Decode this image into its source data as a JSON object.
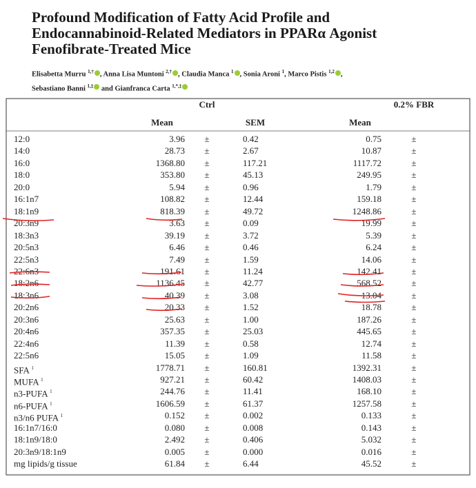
{
  "header": {
    "title_lines": [
      "Profound Modification of Fatty Acid Profile and",
      "Endocannabinoid-Related Mediators in PPARα Agonist",
      "Fenofibrate-Treated Mice"
    ],
    "author_lines": [
      [
        {
          "name": "Elisabetta Murru",
          "sup": "1,†",
          "orcid": true
        },
        {
          "name": "Anna Lisa Muntoni",
          "sup": "2,†",
          "orcid": true
        },
        {
          "name": "Claudia Manca",
          "sup": "1",
          "orcid": true
        },
        {
          "name": "Sonia Aroni",
          "sup": "1",
          "orcid": false
        },
        {
          "name": "Marco Pistis",
          "sup": "1,2",
          "orcid": true
        }
      ],
      [
        {
          "name": "Sebastiano Banni",
          "sup": "1,‡",
          "orcid": true
        },
        {
          "name": "Gianfranca Carta",
          "sup": "1,*,‡",
          "orcid": true
        }
      ]
    ],
    "separator": ",",
    "conjunction": "and"
  },
  "table": {
    "groups": [
      "Ctrl",
      "0.2% FBR"
    ],
    "columns": [
      "Mean",
      "SEM",
      "Mean"
    ],
    "rows": [
      {
        "label": "12:0",
        "cells": [
          "3.96",
          "±",
          "0.42",
          "0.75",
          "±"
        ]
      },
      {
        "label": "14:0",
        "cells": [
          "28.73",
          "±",
          "2.67",
          "10.87",
          "±"
        ]
      },
      {
        "label": "16:0",
        "cells": [
          "1368.80",
          "±",
          "117.21",
          "1117.72",
          "±"
        ]
      },
      {
        "label": "18:0",
        "cells": [
          "353.80",
          "±",
          "45.13",
          "249.95",
          "±"
        ]
      },
      {
        "label": "20:0",
        "cells": [
          "5.94",
          "±",
          "0.96",
          "1.79",
          "±"
        ]
      },
      {
        "label": "16:1n7",
        "cells": [
          "108.82",
          "±",
          "12.44",
          "159.18",
          "±"
        ]
      },
      {
        "label": "18:1n9",
        "cells": [
          "818.39",
          "±",
          "49.72",
          "1248.86",
          "±"
        ]
      },
      {
        "label": "20:3n9",
        "cells": [
          "3.63",
          "±",
          "0.09",
          "19.99",
          "±"
        ]
      },
      {
        "label": "18:3n3",
        "cells": [
          "39.19",
          "±",
          "3.72",
          "5.39",
          "±"
        ]
      },
      {
        "label": "20:5n3",
        "cells": [
          "6.46",
          "±",
          "0.46",
          "6.24",
          "±"
        ]
      },
      {
        "label": "22:5n3",
        "cells": [
          "7.49",
          "±",
          "1.59",
          "14.06",
          "±"
        ]
      },
      {
        "label": "22:6n3",
        "cells": [
          "191.61",
          "±",
          "11.24",
          "142.41",
          "±"
        ]
      },
      {
        "label": "18:2n6",
        "cells": [
          "1136.45",
          "±",
          "42.77",
          "568.52",
          "±"
        ]
      },
      {
        "label": "18:3n6",
        "cells": [
          "40.39",
          "±",
          "3.08",
          "13.04",
          "±"
        ]
      },
      {
        "label": "20:2n6",
        "cells": [
          "20.33",
          "±",
          "1.52",
          "18.78",
          "±"
        ]
      },
      {
        "label": "20:3n6",
        "cells": [
          "25.63",
          "±",
          "1.00",
          "187.26",
          "±"
        ]
      },
      {
        "label": "20:4n6",
        "cells": [
          "357.35",
          "±",
          "25.03",
          "445.65",
          "±"
        ]
      },
      {
        "label": "22:4n6",
        "cells": [
          "11.39",
          "±",
          "0.58",
          "12.74",
          "±"
        ]
      },
      {
        "label": "22:5n6",
        "cells": [
          "15.05",
          "±",
          "1.09",
          "11.58",
          "±"
        ]
      },
      {
        "label": "SFA",
        "sup": "1",
        "cells": [
          "1778.71",
          "±",
          "160.81",
          "1392.31",
          "±"
        ]
      },
      {
        "label": "MUFA",
        "sup": "1",
        "cells": [
          "927.21",
          "±",
          "60.42",
          "1408.03",
          "±"
        ]
      },
      {
        "label": "n3-PUFA",
        "sup": "1",
        "cells": [
          "244.76",
          "±",
          "11.41",
          "168.10",
          "±"
        ]
      },
      {
        "label": "n6-PUFA",
        "sup": "1",
        "cells": [
          "1606.59",
          "±",
          "61.37",
          "1257.58",
          "±"
        ]
      },
      {
        "label": "n3/n6 PUFA",
        "sup": "1",
        "cells": [
          "0.152",
          "±",
          "0.002",
          "0.133",
          "±"
        ]
      },
      {
        "label": "16:1n7/16:0",
        "cells": [
          "0.080",
          "±",
          "0.008",
          "0.143",
          "±"
        ]
      },
      {
        "label": "18:1n9/18:0",
        "cells": [
          "2.492",
          "±",
          "0.406",
          "5.032",
          "±"
        ]
      },
      {
        "label": "20:3n9/18:1n9",
        "cells": [
          "0.005",
          "±",
          "0.000",
          "0.016",
          "±"
        ]
      },
      {
        "label": "mg lipids/g tissue",
        "cells": [
          "61.84",
          "±",
          "6.44",
          "45.52",
          "±"
        ]
      }
    ]
  }
}
